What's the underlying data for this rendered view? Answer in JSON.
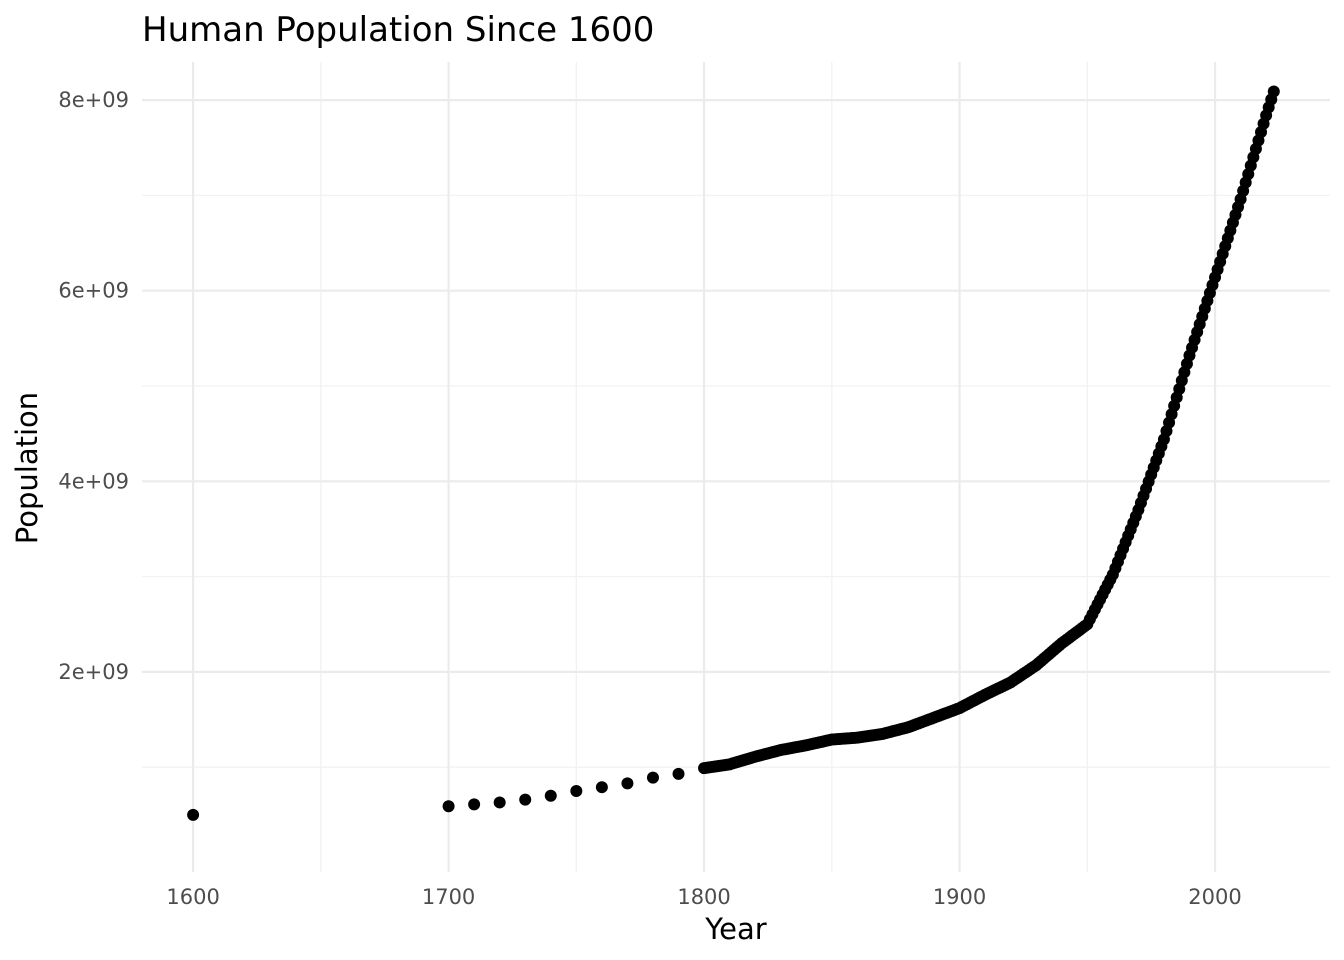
{
  "chart_data": {
    "type": "scatter",
    "title": "Human Population Since 1600",
    "xlabel": "Year",
    "ylabel": "Population",
    "xlim": [
      1580,
      2045
    ],
    "ylim": [
      -100000000,
      8400000000
    ],
    "x_ticks": [
      1600,
      1700,
      1800,
      1900,
      2000
    ],
    "x_tick_labels": [
      "1600",
      "1700",
      "1800",
      "1900",
      "2000"
    ],
    "y_ticks": [
      2000000000,
      4000000000,
      6000000000,
      8000000000
    ],
    "y_tick_labels": [
      "2e+09",
      "4e+09",
      "6e+09",
      "8e+09"
    ],
    "grid": true,
    "point_color": "#000000",
    "anchors": [
      [
        1600,
        500000000
      ],
      [
        1700,
        590000000
      ],
      [
        1710,
        610000000
      ],
      [
        1720,
        630000000
      ],
      [
        1730,
        660000000
      ],
      [
        1740,
        700000000
      ],
      [
        1750,
        750000000
      ],
      [
        1760,
        790000000
      ],
      [
        1770,
        830000000
      ],
      [
        1780,
        890000000
      ],
      [
        1790,
        930000000
      ],
      [
        1800,
        990000000
      ],
      [
        1810,
        1030000000
      ],
      [
        1820,
        1110000000
      ],
      [
        1830,
        1180000000
      ],
      [
        1840,
        1230000000
      ],
      [
        1850,
        1290000000
      ],
      [
        1860,
        1310000000
      ],
      [
        1870,
        1350000000
      ],
      [
        1880,
        1420000000
      ],
      [
        1890,
        1520000000
      ],
      [
        1900,
        1620000000
      ],
      [
        1910,
        1760000000
      ],
      [
        1920,
        1890000000
      ],
      [
        1930,
        2070000000
      ],
      [
        1940,
        2300000000
      ],
      [
        1950,
        2500000000
      ],
      [
        1960,
        3020000000
      ],
      [
        1970,
        3700000000
      ],
      [
        1980,
        4440000000
      ],
      [
        1990,
        5320000000
      ],
      [
        2000,
        6140000000
      ],
      [
        2010,
        6960000000
      ],
      [
        2020,
        7840000000
      ],
      [
        2023,
        8090000000
      ]
    ]
  }
}
